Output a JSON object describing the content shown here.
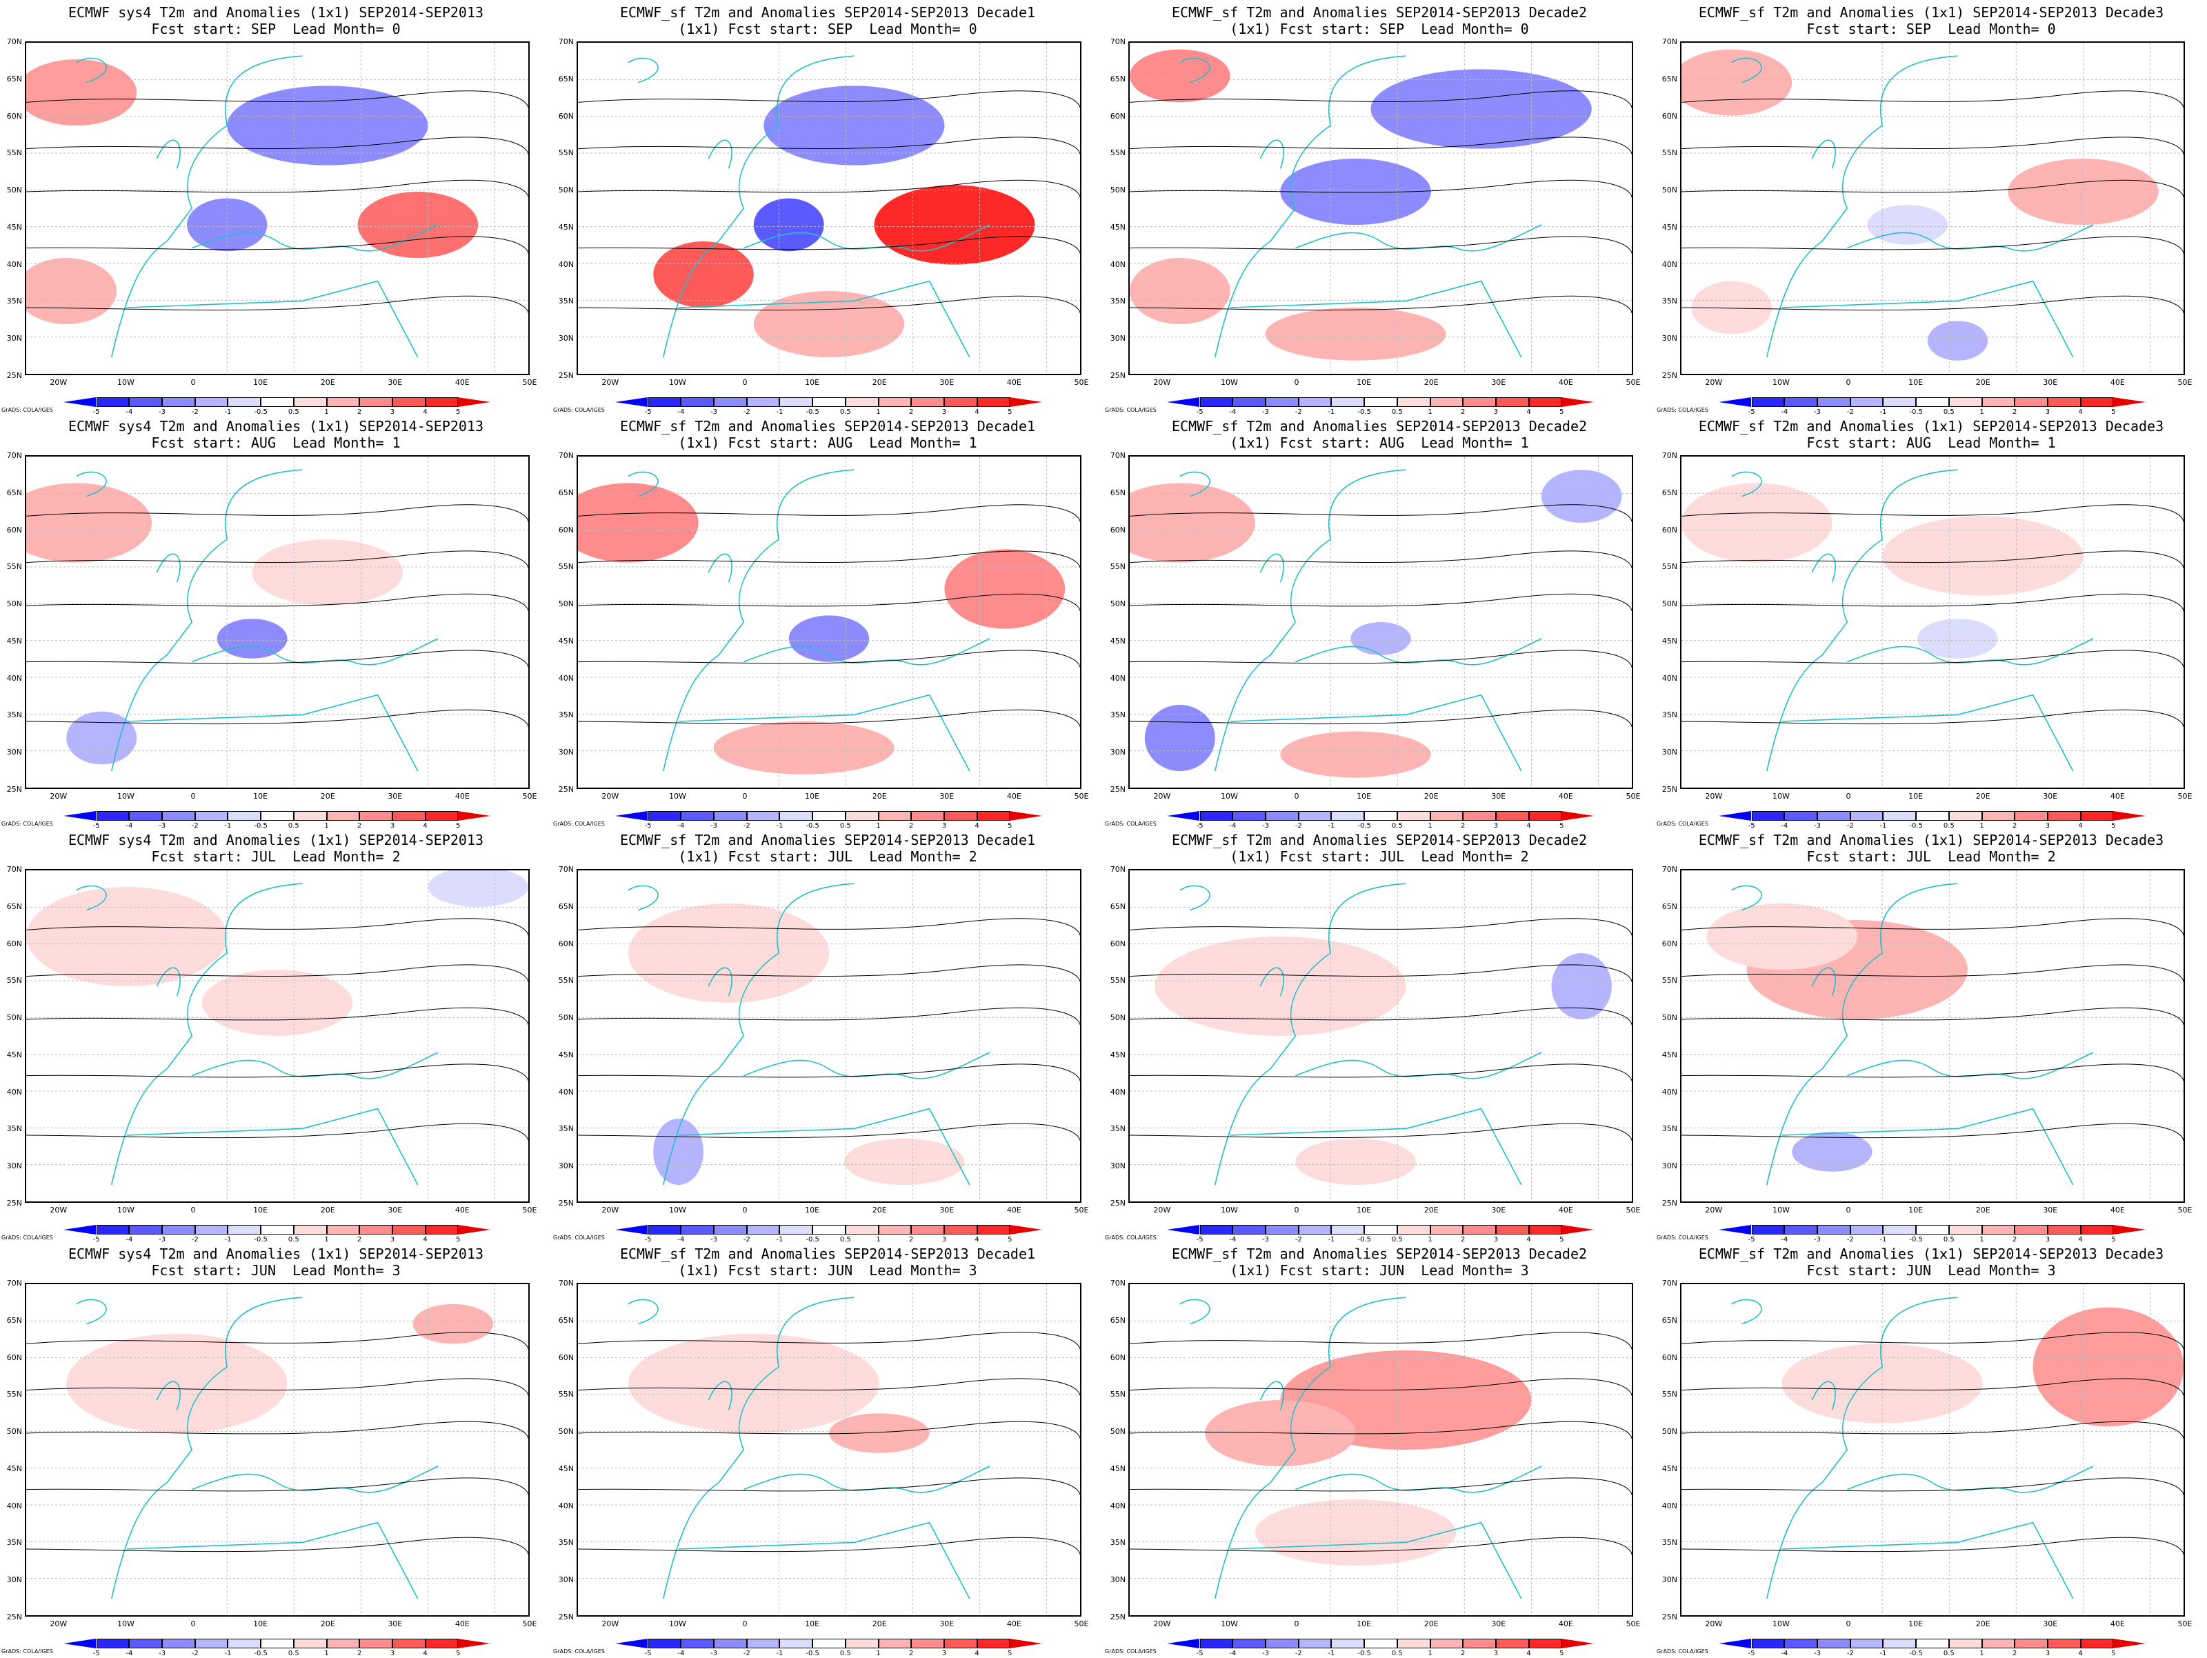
{
  "panels": [
    {
      "title_line1": "ECMWF sys4 T2m and Anomalies (1x1) SEP2014-SEP2013",
      "title_line2": "Fcst start: SEP  Lead Month= 0"
    },
    {
      "title_line1": "ECMWF_sf T2m and Anomalies SEP2014-SEP2013 Decade1",
      "title_line2": "(1x1) Fcst start: SEP  Lead Month= 0"
    },
    {
      "title_line1": "ECMWF_sf T2m and Anomalies SEP2014-SEP2013 Decade2",
      "title_line2": "(1x1) Fcst start: SEP  Lead Month= 0"
    },
    {
      "title_line1": "ECMWF_sf T2m and Anomalies (1x1) SEP2014-SEP2013 Decade3",
      "title_line2": "Fcst start: SEP  Lead Month= 0"
    },
    {
      "title_line1": "ECMWF sys4 T2m and Anomalies (1x1) SEP2014-SEP2013",
      "title_line2": "Fcst start: AUG  Lead Month= 1"
    },
    {
      "title_line1": "ECMWF_sf T2m and Anomalies SEP2014-SEP2013 Decade1",
      "title_line2": "(1x1) Fcst start: AUG  Lead Month= 1"
    },
    {
      "title_line1": "ECMWF_sf T2m and Anomalies SEP2014-SEP2013 Decade2",
      "title_line2": "(1x1) Fcst start: AUG  Lead Month= 1"
    },
    {
      "title_line1": "ECMWF_sf T2m and Anomalies (1x1) SEP2014-SEP2013 Decade3",
      "title_line2": "Fcst start: AUG  Lead Month= 1"
    },
    {
      "title_line1": "ECMWF sys4 T2m and Anomalies (1x1) SEP2014-SEP2013",
      "title_line2": "Fcst start: JUL  Lead Month= 2"
    },
    {
      "title_line1": "ECMWF_sf T2m and Anomalies SEP2014-SEP2013 Decade1",
      "title_line2": "(1x1) Fcst start: JUL  Lead Month= 2"
    },
    {
      "title_line1": "ECMWF_sf T2m and Anomalies SEP2014-SEP2013 Decade2",
      "title_line2": "(1x1) Fcst start: JUL  Lead Month= 2"
    },
    {
      "title_line1": "ECMWF_sf T2m and Anomalies (1x1) SEP2014-SEP2013 Decade3",
      "title_line2": "Fcst start: JUL  Lead Month= 2"
    },
    {
      "title_line1": "ECMWF sys4 T2m and Anomalies (1x1) SEP2014-SEP2013",
      "title_line2": "Fcst start: JUN  Lead Month= 3"
    },
    {
      "title_line1": "ECMWF_sf T2m and Anomalies SEP2014-SEP2013 Decade1",
      "title_line2": "(1x1) Fcst start: JUN  Lead Month= 3"
    },
    {
      "title_line1": "ECMWF_sf T2m and Anomalies SEP2014-SEP2013 Decade2",
      "title_line2": "(1x1) Fcst start: JUN  Lead Month= 3"
    },
    {
      "title_line1": "ECMWF_sf T2m and Anomalies (1x1) SEP2014-SEP2013 Decade3",
      "title_line2": "Fcst start: JUN  Lead Month= 3"
    }
  ],
  "lat_labels": [
    "70N",
    "65N",
    "60N",
    "55N",
    "50N",
    "45N",
    "40N",
    "35N",
    "30N",
    "25N"
  ],
  "lon_labels": [
    "20W",
    "10W",
    "0",
    "10E",
    "20E",
    "30E",
    "40E",
    "50E"
  ],
  "colorbar": {
    "ticks": [
      "-5",
      "-4",
      "-3",
      "-2",
      "-1",
      "-0.5",
      "0.5",
      "1",
      "2",
      "3",
      "4",
      "5"
    ],
    "colors": [
      "#0000ff",
      "#2828ff",
      "#5a5aff",
      "#8c8cff",
      "#b4b4ff",
      "#dcdcff",
      "#ffffff",
      "#ffdcdc",
      "#ffb4b4",
      "#ff8c8c",
      "#ff5a5a",
      "#ff2828",
      "#e60000"
    ]
  },
  "credit": "GrADS: COLA/IGES"
}
